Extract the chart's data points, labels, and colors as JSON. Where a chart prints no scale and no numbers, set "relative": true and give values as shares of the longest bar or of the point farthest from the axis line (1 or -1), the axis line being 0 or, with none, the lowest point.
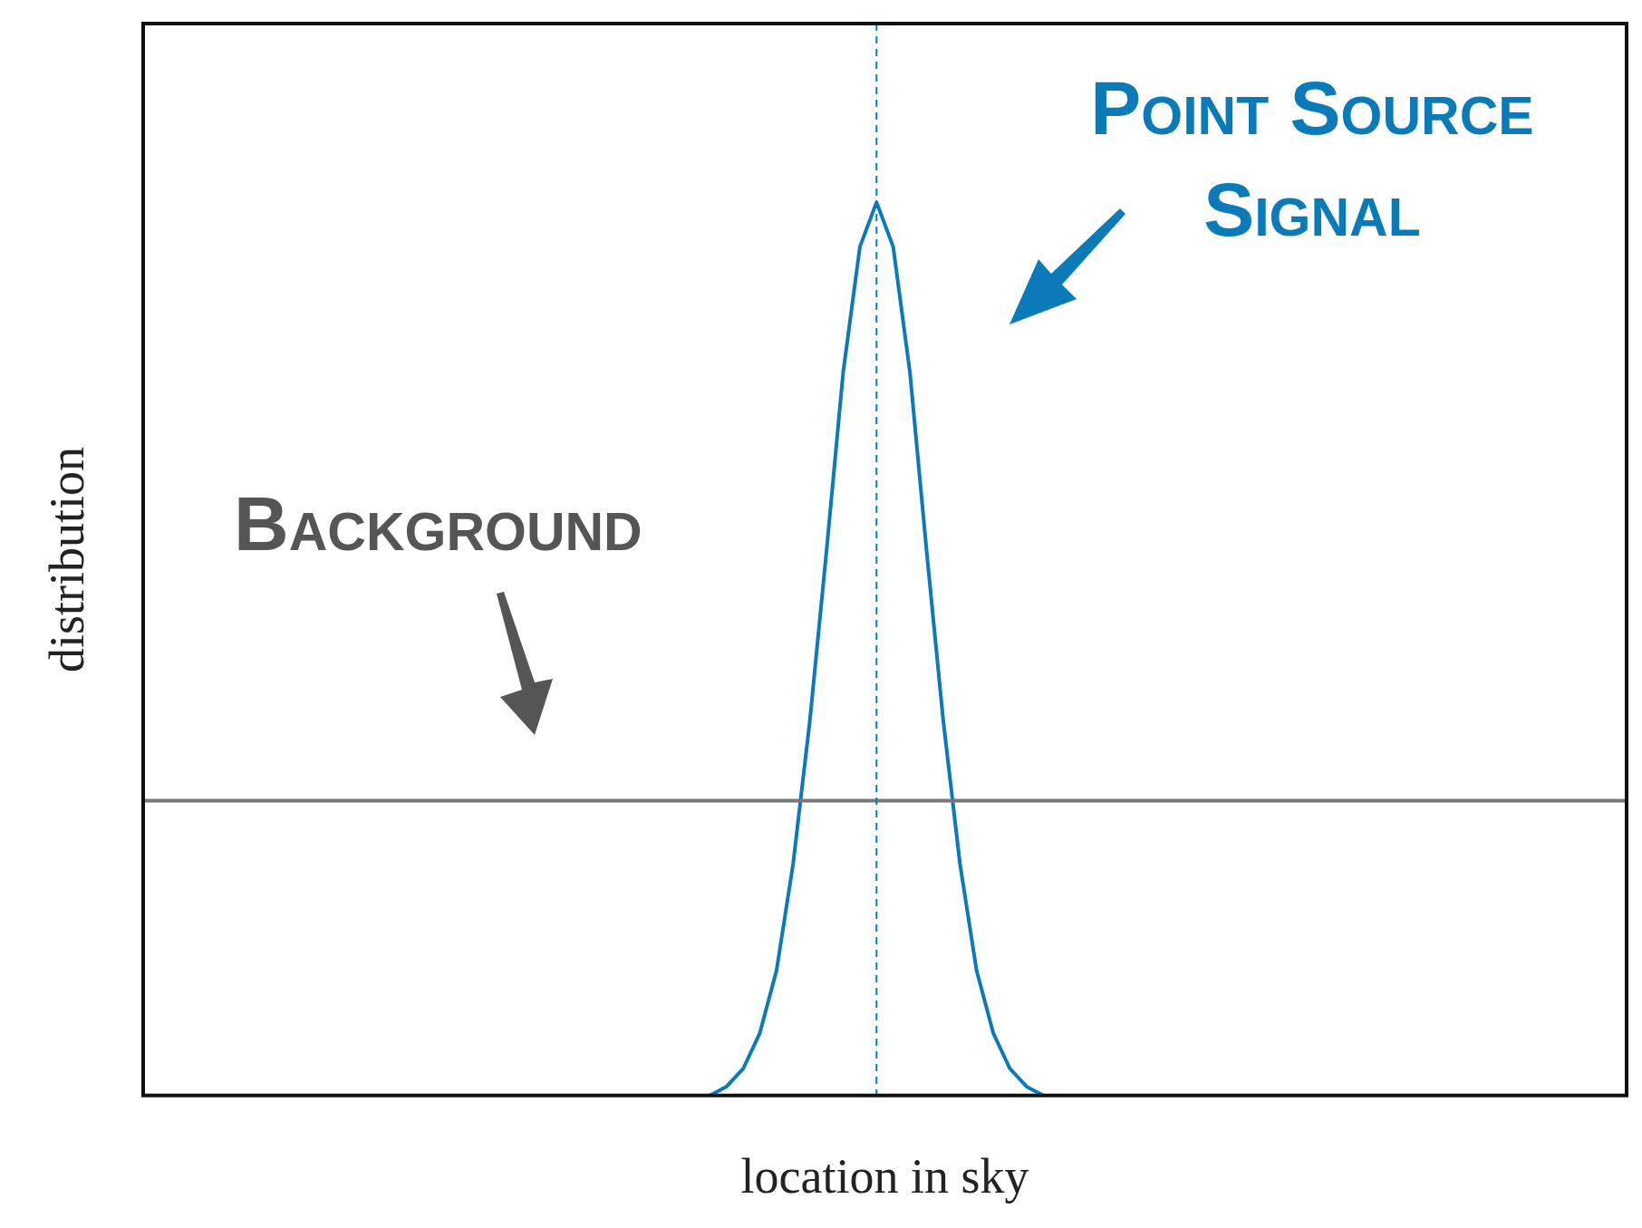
{
  "chart_data": {
    "type": "line",
    "relative": true,
    "xlabel": "location in sky",
    "ylabel": "distribution",
    "legend": false,
    "grid": false,
    "marker": "none",
    "categories": [
      null,
      null,
      null,
      null,
      null,
      null,
      null,
      null,
      null,
      null,
      null,
      null,
      null,
      null,
      null,
      null,
      null,
      null,
      null,
      null,
      null,
      null,
      null,
      null,
      null,
      null,
      null,
      null,
      null,
      null,
      null,
      null,
      null,
      null,
      null,
      null,
      null,
      null,
      null,
      null,
      null,
      null,
      null,
      null,
      null,
      null,
      null,
      null,
      null,
      null,
      null,
      null,
      null,
      null,
      null,
      null,
      null,
      null,
      null,
      null,
      null,
      null,
      null,
      null,
      null,
      null,
      null,
      null,
      null,
      null,
      null,
      null,
      null,
      null,
      null,
      null,
      null,
      null,
      null,
      null,
      null,
      null,
      null,
      null,
      null,
      null,
      null,
      null,
      null,
      null
    ],
    "series": [
      {
        "color": "#777777",
        "line_style": "solid",
        "values": [
          0.33,
          0.33,
          0.33,
          0.33,
          0.33,
          0.33,
          0.33,
          0.33,
          0.33,
          0.33,
          0.33,
          0.33,
          0.33,
          0.33,
          0.33,
          0.33,
          0.33,
          0.33,
          0.33,
          0.33,
          0.33,
          0.33,
          0.33,
          0.33,
          0.33,
          0.33,
          0.33,
          0.33,
          0.33,
          0.33,
          0.33,
          0.33,
          0.33,
          0.33,
          0.33,
          0.33,
          0.33,
          0.33,
          0.33,
          0.33,
          0.33,
          0.33,
          0.33,
          0.33,
          0.33,
          0.33,
          0.33,
          0.33,
          0.33,
          0.33,
          0.33,
          0.33,
          0.33,
          0.33,
          0.33,
          0.33,
          0.33,
          0.33,
          0.33,
          0.33,
          0.33,
          0.33,
          0.33,
          0.33,
          0.33,
          0.33,
          0.33,
          0.33,
          0.33,
          0.33,
          0.33,
          0.33,
          0.33,
          0.33,
          0.33,
          0.33,
          0.33,
          0.33,
          0.33,
          0.33,
          0.33,
          0.33,
          0.33,
          0.33,
          0.33,
          0.33,
          0.33,
          0.33,
          0.33,
          0.33
        ]
      },
      {
        "color": "#0a7ab8",
        "line_style": "solid",
        "values": [
          null,
          null,
          null,
          null,
          null,
          null,
          null,
          null,
          null,
          null,
          null,
          null,
          null,
          null,
          null,
          null,
          null,
          null,
          null,
          null,
          null,
          null,
          null,
          null,
          null,
          null,
          null,
          null,
          null,
          null,
          null,
          null,
          null,
          null,
          0,
          0.01,
          0.03,
          0.07,
          0.14,
          0.26,
          0.42,
          0.61,
          0.81,
          0.95,
          1,
          0.95,
          0.81,
          0.61,
          0.42,
          0.26,
          0.14,
          0.07,
          0.03,
          0.01,
          0,
          null,
          null,
          null,
          null,
          null,
          null,
          null,
          null,
          null,
          null,
          null,
          null,
          null,
          null,
          null,
          null,
          null,
          null,
          null,
          null,
          null,
          null,
          null,
          null,
          null,
          null,
          null,
          null,
          null,
          null,
          null,
          null,
          null,
          null,
          null
        ]
      }
    ],
    "annotations": [
      "Point Source Signal",
      "Background"
    ]
  }
}
